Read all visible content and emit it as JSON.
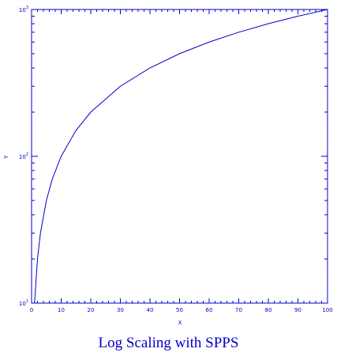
{
  "chart_data": {
    "type": "line",
    "title": "Log Scaling with SPPS",
    "xlabel": "X",
    "ylabel": "Y",
    "xlim": [
      0,
      100
    ],
    "ylim": [
      10,
      1000
    ],
    "yscale": "log",
    "x_ticks": [
      0,
      10,
      20,
      30,
      40,
      50,
      60,
      70,
      80,
      90,
      100
    ],
    "y_ticks": [
      {
        "value": 10,
        "base": "10",
        "exp": "1"
      },
      {
        "value": 100,
        "base": "10",
        "exp": "2"
      },
      {
        "value": 1000,
        "base": "10",
        "exp": "3"
      }
    ],
    "grid": false,
    "series": [
      {
        "x": [
          1,
          2,
          3,
          5,
          7,
          10,
          15,
          20,
          30,
          40,
          50,
          60,
          70,
          80,
          90,
          100
        ],
        "y": [
          10,
          20,
          30,
          50,
          70,
          100,
          150,
          200,
          300,
          400,
          500,
          600,
          700,
          800,
          900,
          1000
        ]
      }
    ]
  },
  "colors": {
    "axis": "#0000cc",
    "line": "#0000cc"
  }
}
